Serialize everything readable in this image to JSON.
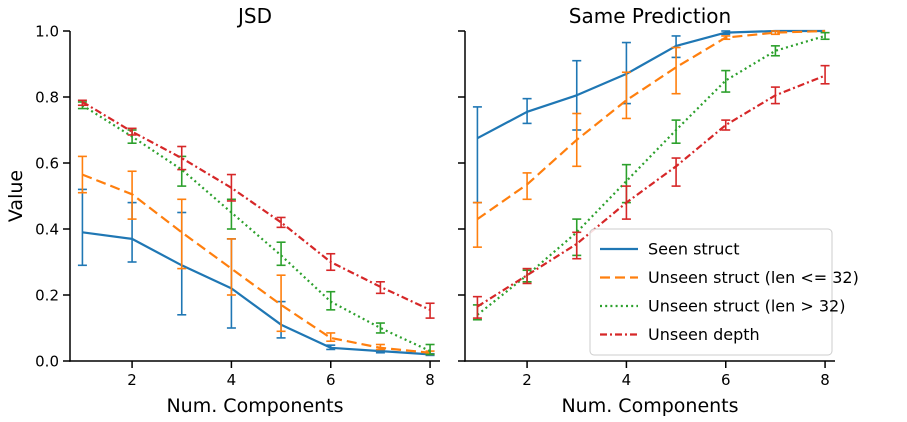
{
  "chart_data": [
    {
      "type": "line",
      "title": "JSD",
      "xlabel": "Num. Components",
      "ylabel": "Value",
      "xlim": [
        0.75,
        8.2
      ],
      "ylim": [
        0.0,
        1.0
      ],
      "xticks": [
        2,
        4,
        6,
        8
      ],
      "yticks": [
        0.0,
        0.2,
        0.4,
        0.6,
        0.8,
        1.0
      ],
      "ytick_labels": [
        "0.0",
        "0.2",
        "0.4",
        "0.6",
        "0.8",
        "1.0"
      ],
      "x": [
        1,
        2,
        3,
        4,
        5,
        6,
        7,
        8
      ],
      "series": [
        {
          "name": "Seen struct",
          "color": "#1f77b4",
          "dash": "solid",
          "values": [
            0.39,
            0.37,
            0.29,
            0.22,
            0.11,
            0.04,
            0.03,
            0.02
          ],
          "err_low": [
            0.29,
            0.3,
            0.14,
            0.1,
            0.07,
            0.035,
            0.025,
            0.017
          ],
          "err_high": [
            0.52,
            0.48,
            0.45,
            0.37,
            0.18,
            0.048,
            0.033,
            0.022
          ]
        },
        {
          "name": "Unseen struct (len <= 32)",
          "color": "#ff7f0e",
          "dash": "dashed",
          "values": [
            0.565,
            0.505,
            0.39,
            0.28,
            0.17,
            0.07,
            0.04,
            0.025
          ],
          "err_low": [
            0.51,
            0.43,
            0.28,
            0.2,
            0.09,
            0.06,
            0.035,
            0.02
          ],
          "err_high": [
            0.62,
            0.575,
            0.49,
            0.37,
            0.26,
            0.085,
            0.05,
            0.03
          ]
        },
        {
          "name": "Unseen struct (len > 32)",
          "color": "#2ca02c",
          "dash": "dotted",
          "values": [
            0.775,
            0.68,
            0.58,
            0.45,
            0.32,
            0.18,
            0.1,
            0.03
          ],
          "err_low": [
            0.765,
            0.66,
            0.53,
            0.4,
            0.29,
            0.155,
            0.085,
            0.02
          ],
          "err_high": [
            0.785,
            0.7,
            0.62,
            0.49,
            0.36,
            0.21,
            0.115,
            0.05
          ]
        },
        {
          "name": "Unseen depth",
          "color": "#d62728",
          "dash": "dashdot",
          "values": [
            0.785,
            0.695,
            0.615,
            0.525,
            0.42,
            0.3,
            0.225,
            0.155
          ],
          "err_low": [
            0.775,
            0.685,
            0.58,
            0.485,
            0.405,
            0.275,
            0.205,
            0.13
          ],
          "err_high": [
            0.79,
            0.705,
            0.65,
            0.565,
            0.435,
            0.325,
            0.24,
            0.175
          ]
        }
      ]
    },
    {
      "type": "line",
      "title": "Same Prediction",
      "xlabel": "Num. Components",
      "ylabel": "",
      "xlim": [
        0.75,
        8.2
      ],
      "ylim": [
        0.0,
        1.0
      ],
      "xticks": [
        2,
        4,
        6,
        8
      ],
      "yticks": [
        0.0,
        0.2,
        0.4,
        0.6,
        0.8,
        1.0
      ],
      "ytick_labels": [],
      "legend_position": "lower-right",
      "x": [
        1,
        2,
        3,
        4,
        5,
        6,
        7,
        8
      ],
      "series": [
        {
          "name": "Seen struct",
          "color": "#1f77b4",
          "dash": "solid",
          "values": [
            0.675,
            0.755,
            0.805,
            0.87,
            0.955,
            0.995,
            1.0,
            1.0
          ],
          "err_low": [
            0.48,
            0.72,
            0.7,
            0.78,
            0.92,
            0.99,
            1.0,
            1.0
          ],
          "err_high": [
            0.77,
            0.795,
            0.91,
            0.965,
            0.985,
            1.0,
            1.0,
            1.0
          ]
        },
        {
          "name": "Unseen struct (len <= 32)",
          "color": "#ff7f0e",
          "dash": "dashed",
          "values": [
            0.43,
            0.535,
            0.67,
            0.79,
            0.89,
            0.98,
            0.995,
            1.0
          ],
          "err_low": [
            0.345,
            0.49,
            0.59,
            0.735,
            0.81,
            0.975,
            0.99,
            1.0
          ],
          "err_high": [
            0.48,
            0.57,
            0.75,
            0.875,
            0.95,
            0.985,
            1.0,
            1.0
          ]
        },
        {
          "name": "Unseen struct (len > 32)",
          "color": "#2ca02c",
          "dash": "dotted",
          "values": [
            0.14,
            0.26,
            0.39,
            0.545,
            0.7,
            0.85,
            0.94,
            0.985
          ],
          "err_low": [
            0.125,
            0.24,
            0.32,
            0.48,
            0.66,
            0.815,
            0.925,
            0.975
          ],
          "err_high": [
            0.17,
            0.275,
            0.43,
            0.595,
            0.73,
            0.88,
            0.955,
            0.995
          ]
        },
        {
          "name": "Unseen depth",
          "color": "#d62728",
          "dash": "dashdot",
          "values": [
            0.165,
            0.26,
            0.355,
            0.48,
            0.59,
            0.715,
            0.805,
            0.865
          ],
          "err_low": [
            0.13,
            0.235,
            0.31,
            0.43,
            0.53,
            0.7,
            0.78,
            0.84
          ],
          "err_high": [
            0.195,
            0.28,
            0.39,
            0.53,
            0.615,
            0.73,
            0.83,
            0.895
          ]
        }
      ]
    }
  ]
}
